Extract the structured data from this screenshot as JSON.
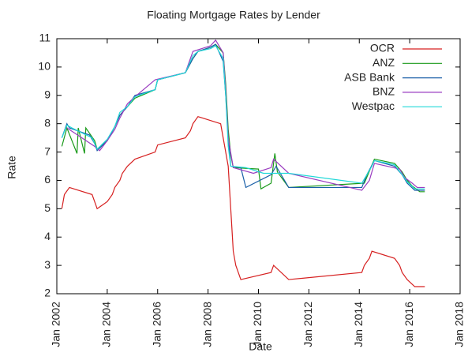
{
  "chart_data": {
    "type": "line",
    "title": "Floating Mortgage Rates by Lender",
    "x_label": "Date",
    "y_label": "Rate",
    "xlim": [
      2002,
      2018
    ],
    "xticks": [
      {
        "value": 2002,
        "label": "Jan 2002"
      },
      {
        "value": 2004,
        "label": "Jan 2004"
      },
      {
        "value": 2006,
        "label": "Jan 2006"
      },
      {
        "value": 2008,
        "label": "Jan 2008"
      },
      {
        "value": 2010,
        "label": "Jan 2010"
      },
      {
        "value": 2012,
        "label": "Jan 2012"
      },
      {
        "value": 2014,
        "label": "Jan 2014"
      },
      {
        "value": 2016,
        "label": "Jan 2016"
      },
      {
        "value": 2018,
        "label": "Jan 2018"
      }
    ],
    "ylim": [
      2,
      11
    ],
    "yticks": [
      2,
      3,
      4,
      5,
      6,
      7,
      8,
      9,
      10,
      11
    ],
    "legend": "top-right",
    "series": [
      {
        "name": "OCR",
        "color": "#d62020",
        "x": [
          2002.2,
          2002.3,
          2002.5,
          2003.4,
          2003.5,
          2003.6,
          2004.0,
          2004.2,
          2004.3,
          2004.5,
          2004.6,
          2004.8,
          2005.1,
          2005.9,
          2006.0,
          2007.1,
          2007.3,
          2007.4,
          2007.6,
          2008.5,
          2008.6,
          2008.8,
          2008.9,
          2009.0,
          2009.1,
          2009.3,
          2010.5,
          2010.6,
          2011.2,
          2014.1,
          2014.2,
          2014.4,
          2014.5,
          2015.4,
          2015.6,
          2015.7,
          2015.9,
          2016.2,
          2016.6
        ],
        "values": [
          5.0,
          5.5,
          5.75,
          5.5,
          5.25,
          5.0,
          5.25,
          5.5,
          5.75,
          6.0,
          6.25,
          6.5,
          6.75,
          7.0,
          7.25,
          7.5,
          7.75,
          8.0,
          8.25,
          8.0,
          7.5,
          6.5,
          5.0,
          3.5,
          3.0,
          2.5,
          2.75,
          3.0,
          2.5,
          2.75,
          3.0,
          3.25,
          3.5,
          3.25,
          3.0,
          2.75,
          2.5,
          2.25,
          2.25
        ]
      },
      {
        "name": "ANZ",
        "color": "#1a9a1a",
        "x": [
          2002.2,
          2002.4,
          2002.8,
          2002.85,
          2003.1,
          2003.15,
          2003.5,
          2003.6,
          2004.0,
          2004.3,
          2004.5,
          2004.8,
          2005.1,
          2005.9,
          2006.0,
          2007.1,
          2007.4,
          2007.6,
          2008.1,
          2008.3,
          2008.6,
          2008.7,
          2008.8,
          2008.9,
          2009.0,
          2010.0,
          2010.1,
          2010.5,
          2010.65,
          2010.75,
          2011.2,
          2014.2,
          2014.6,
          2015.4,
          2015.7,
          2015.9,
          2016.1,
          2016.4,
          2016.6
        ],
        "values": [
          7.2,
          7.85,
          6.95,
          7.85,
          6.95,
          7.85,
          7.4,
          7.1,
          7.4,
          7.9,
          8.3,
          8.6,
          8.9,
          9.2,
          9.55,
          9.8,
          10.3,
          10.55,
          10.7,
          10.8,
          10.5,
          9.4,
          7.8,
          6.9,
          6.45,
          6.4,
          5.7,
          5.9,
          6.95,
          6.3,
          5.75,
          5.9,
          6.75,
          6.6,
          6.3,
          6.0,
          5.8,
          5.6,
          5.6
        ]
      },
      {
        "name": "ASB Bank",
        "color": "#1a5fa8",
        "x": [
          2002.2,
          2002.4,
          2002.5,
          2003.3,
          2003.5,
          2003.6,
          2004.0,
          2004.3,
          2004.5,
          2004.8,
          2005.1,
          2005.9,
          2006.0,
          2007.1,
          2007.4,
          2007.6,
          2008.1,
          2008.3,
          2008.6,
          2008.7,
          2008.8,
          2008.9,
          2009.3,
          2009.5,
          2010.5,
          2010.7,
          2010.9,
          2011.2,
          2014.1,
          2014.3,
          2014.6,
          2015.4,
          2015.7,
          2015.9,
          2016.2,
          2016.6
        ],
        "values": [
          7.5,
          8.0,
          7.85,
          7.6,
          7.3,
          7.05,
          7.4,
          7.9,
          8.3,
          8.6,
          9.0,
          9.2,
          9.55,
          9.8,
          10.3,
          10.55,
          10.7,
          10.8,
          10.2,
          9.0,
          7.5,
          6.5,
          6.45,
          5.75,
          6.2,
          6.5,
          6.2,
          5.75,
          5.75,
          6.2,
          6.7,
          6.5,
          6.2,
          5.9,
          5.65,
          5.65
        ]
      },
      {
        "name": "BNZ",
        "color": "#9a3cc0",
        "x": [
          2002.4,
          2003.5,
          2003.7,
          2004.0,
          2004.3,
          2004.5,
          2004.8,
          2005.1,
          2005.9,
          2007.1,
          2007.4,
          2008.1,
          2008.3,
          2008.6,
          2008.7,
          2008.8,
          2009.0,
          2009.8,
          2010.5,
          2010.6,
          2011.2,
          2014.1,
          2014.4,
          2014.6,
          2015.6,
          2015.8,
          2016.1,
          2016.3,
          2016.6
        ],
        "values": [
          7.85,
          7.2,
          7.05,
          7.4,
          7.8,
          8.2,
          8.7,
          8.95,
          9.55,
          9.8,
          10.55,
          10.75,
          10.95,
          10.5,
          9.2,
          7.5,
          6.45,
          6.25,
          6.45,
          6.75,
          6.25,
          5.65,
          6.0,
          6.6,
          6.4,
          6.1,
          5.9,
          5.75,
          5.75
        ]
      },
      {
        "name": "Westpac",
        "color": "#20d8d8",
        "x": [
          2002.2,
          2002.4,
          2002.6,
          2003.4,
          2003.6,
          2004.0,
          2004.3,
          2004.5,
          2004.8,
          2005.1,
          2005.9,
          2006.0,
          2007.1,
          2007.4,
          2007.6,
          2008.1,
          2008.3,
          2008.6,
          2008.7,
          2008.8,
          2008.9,
          2009.5,
          2010.2,
          2011.2,
          2014.1,
          2014.5,
          2014.6,
          2015.4,
          2015.7,
          2015.9,
          2016.2,
          2016.6
        ],
        "values": [
          7.5,
          7.95,
          7.85,
          7.5,
          7.1,
          7.45,
          7.9,
          8.4,
          8.6,
          8.95,
          9.2,
          9.55,
          9.8,
          10.4,
          10.55,
          10.65,
          10.75,
          10.3,
          9.0,
          7.2,
          6.5,
          6.45,
          6.25,
          6.25,
          5.9,
          6.5,
          6.7,
          6.55,
          6.2,
          5.95,
          5.7,
          5.7
        ]
      }
    ]
  }
}
